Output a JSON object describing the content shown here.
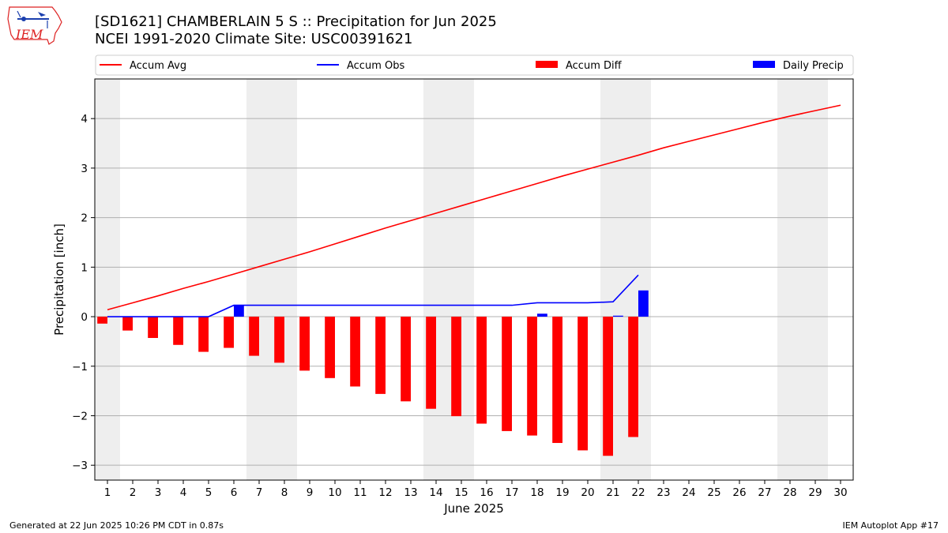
{
  "logo": {
    "text": "IEM"
  },
  "header": {
    "title_line1": "[SD1621] CHAMBERLAIN 5 S :: Precipitation for Jun 2025",
    "title_line2": "NCEI 1991-2020 Climate Site: USC00391621"
  },
  "footer": {
    "generated": "Generated at 22 Jun 2025 10:26 PM CDT in 0.87s",
    "app": "IEM Autoplot App #17"
  },
  "colors": {
    "accum_avg": "#ff0000",
    "accum_obs": "#0000ff",
    "accum_diff": "#ff0000",
    "daily_precip": "#0000ff",
    "weekend_shade": "#eeeeee",
    "grid": "#b0b0b0"
  },
  "chart_data": {
    "type": "bar",
    "xlabel": "June 2025",
    "ylabel": "Precipitation [inch]",
    "ylim": [
      -3.3,
      4.8
    ],
    "xlim": [
      0.5,
      30.5
    ],
    "yticks": [
      -3,
      -2,
      -1,
      0,
      1,
      2,
      3,
      4
    ],
    "ytick_labels": [
      "−3",
      "−2",
      "−1",
      "0",
      "1",
      "2",
      "3",
      "4"
    ],
    "days": [
      1,
      2,
      3,
      4,
      5,
      6,
      7,
      8,
      9,
      10,
      11,
      12,
      13,
      14,
      15,
      16,
      17,
      18,
      19,
      20,
      21,
      22,
      23,
      24,
      25,
      26,
      27,
      28,
      29,
      30
    ],
    "grid": "horizontal",
    "legend_position": "top",
    "legend": [
      "Accum Avg",
      "Accum Obs",
      "Accum Diff",
      "Daily Precip"
    ],
    "weekend_shading": [
      [
        0.5,
        1.5
      ],
      [
        6.5,
        8.5
      ],
      [
        13.5,
        15.5
      ],
      [
        20.5,
        22.5
      ],
      [
        27.5,
        29.5
      ]
    ],
    "series": [
      {
        "name": "Accum Avg",
        "kind": "line",
        "x": [
          1,
          2,
          3,
          4,
          5,
          6,
          7,
          8,
          9,
          10,
          11,
          12,
          13,
          14,
          15,
          16,
          17,
          18,
          19,
          20,
          21,
          22,
          23,
          24,
          25,
          26,
          27,
          28,
          29,
          30
        ],
        "values": [
          0.14,
          0.28,
          0.42,
          0.57,
          0.71,
          0.86,
          1.01,
          1.16,
          1.31,
          1.47,
          1.63,
          1.79,
          1.94,
          2.09,
          2.24,
          2.39,
          2.54,
          2.69,
          2.84,
          2.98,
          3.12,
          3.26,
          3.41,
          3.54,
          3.67,
          3.8,
          3.93,
          4.05,
          4.16,
          4.27
        ]
      },
      {
        "name": "Accum Obs",
        "kind": "line",
        "x": [
          1,
          2,
          3,
          4,
          5,
          6,
          7,
          8,
          9,
          10,
          11,
          12,
          13,
          14,
          15,
          16,
          17,
          18,
          19,
          20,
          21,
          22
        ],
        "values": [
          0,
          0,
          0,
          0,
          0,
          0.23,
          0.23,
          0.23,
          0.23,
          0.23,
          0.23,
          0.23,
          0.23,
          0.23,
          0.23,
          0.23,
          0.23,
          0.28,
          0.28,
          0.28,
          0.3,
          0.84
        ]
      },
      {
        "name": "Accum Diff",
        "kind": "bar",
        "offset": -0.2,
        "x": [
          1,
          2,
          3,
          4,
          5,
          6,
          7,
          8,
          9,
          10,
          11,
          12,
          13,
          14,
          15,
          16,
          17,
          18,
          19,
          20,
          21,
          22
        ],
        "values": [
          -0.14,
          -0.28,
          -0.43,
          -0.57,
          -0.71,
          -0.63,
          -0.79,
          -0.93,
          -1.09,
          -1.24,
          -1.41,
          -1.56,
          -1.71,
          -1.86,
          -2.01,
          -2.16,
          -2.31,
          -2.4,
          -2.55,
          -2.7,
          -2.81,
          -2.43
        ]
      },
      {
        "name": "Daily Precip",
        "kind": "bar",
        "offset": 0.2,
        "x": [
          1,
          2,
          3,
          4,
          5,
          6,
          7,
          8,
          9,
          10,
          11,
          12,
          13,
          14,
          15,
          16,
          17,
          18,
          19,
          20,
          21,
          22
        ],
        "values": [
          0,
          0,
          0,
          0,
          0,
          0.23,
          0,
          0,
          0,
          0,
          0,
          0,
          0,
          0,
          0,
          0,
          0,
          0.06,
          0,
          0,
          0.02,
          0.53
        ]
      }
    ]
  }
}
